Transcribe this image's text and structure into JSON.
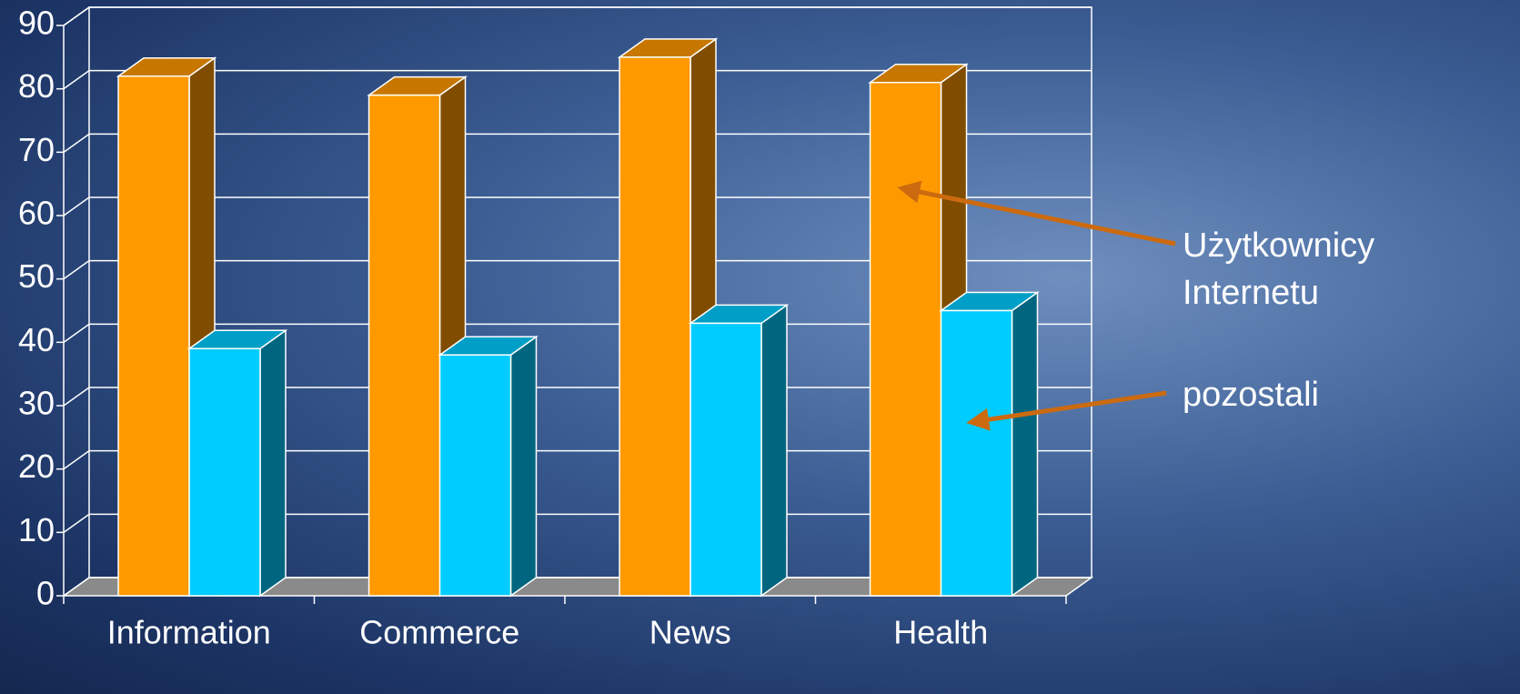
{
  "chart_data": {
    "type": "bar3d",
    "categories": [
      "Information",
      "Commerce",
      "News",
      "Health"
    ],
    "series": [
      {
        "name": "Użytkownicy Internetu",
        "color": "#ff9900",
        "values": [
          82,
          79,
          85,
          81
        ]
      },
      {
        "name": "pozostali",
        "color": "#00ccff",
        "values": [
          39,
          38,
          43,
          45
        ]
      }
    ],
    "ylim": [
      0,
      90
    ],
    "yticks": [
      0,
      10,
      20,
      30,
      40,
      50,
      60,
      70,
      80,
      90
    ],
    "grid": true
  }
}
